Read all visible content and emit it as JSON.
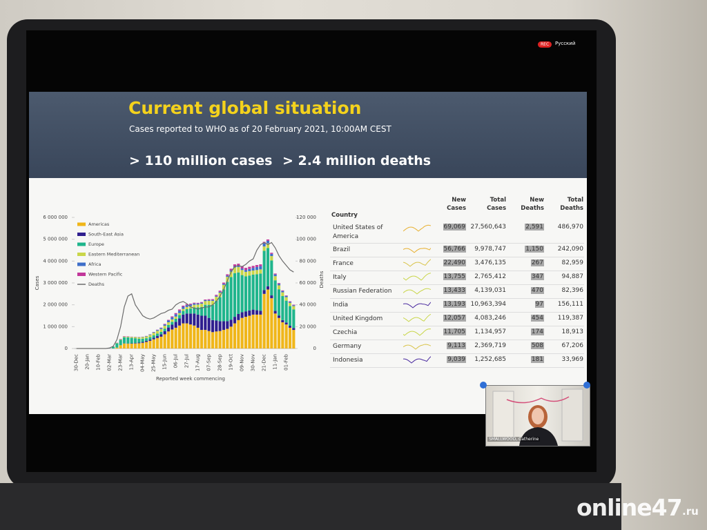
{
  "top_bar": {
    "rec": "REC",
    "language": "Русский"
  },
  "slide": {
    "title": "Current global situation",
    "subtitle": "Cases reported to WHO as of 20 February 2021, 10:00AM CEST",
    "stats": [
      "> 110 million cases",
      "> 2.4 million deaths"
    ]
  },
  "chart_data": {
    "type": "bar",
    "stacked": true,
    "x_label": "Reported week commencing",
    "y_label": "Cases",
    "y2_label": "Deaths",
    "legend": "top-left",
    "categories": [
      "30-Dec",
      null,
      null,
      "20-Jan",
      null,
      null,
      "10-Feb",
      null,
      null,
      "02-Mar",
      null,
      null,
      "23-Mar",
      null,
      null,
      "13-Apr",
      null,
      null,
      "04-May",
      null,
      null,
      "25-May",
      null,
      null,
      "15-Jun",
      null,
      null,
      "06-Jul",
      null,
      null,
      "27-Jul",
      null,
      null,
      "17-Aug",
      null,
      null,
      "07-Sep",
      null,
      null,
      "28-Sep",
      null,
      null,
      "19-Oct",
      null,
      null,
      "09-Nov",
      null,
      null,
      "30-Nov",
      null,
      null,
      "21-Dec",
      null,
      null,
      "11-Jan",
      null,
      null,
      "01-Feb",
      null,
      null
    ],
    "ylim": [
      0,
      6000000
    ],
    "yticks": [
      0,
      {
        "value": 1000000,
        "label": "1 000 000"
      },
      {
        "value": 2000000,
        "label": "2 000 000"
      },
      {
        "value": 3000000,
        "label": "3 000 000"
      },
      {
        "value": 4000000,
        "label": "4 000 000"
      },
      {
        "value": 5000000,
        "label": "5 000 000"
      },
      {
        "value": 6000000,
        "label": "6 000 000"
      }
    ],
    "y2lim": [
      0,
      120000
    ],
    "y2ticks": [
      0,
      {
        "value": 20000,
        "label": "20 000"
      },
      {
        "value": 40000,
        "label": "40 000"
      },
      {
        "value": 60000,
        "label": "60 000"
      },
      {
        "value": 80000,
        "label": "80 000"
      },
      {
        "value": 100000,
        "label": "100 000"
      },
      {
        "value": 120000,
        "label": "120 000"
      }
    ],
    "series": [
      {
        "name": "Americas",
        "color": "#f0b619",
        "values": [
          0,
          0,
          0,
          0,
          0,
          0,
          0,
          0,
          0,
          0,
          5000,
          40000,
          150000,
          230000,
          220000,
          220000,
          230000,
          240000,
          260000,
          300000,
          350000,
          420000,
          480000,
          540000,
          650000,
          780000,
          870000,
          950000,
          1050000,
          1150000,
          1150000,
          1100000,
          1050000,
          950000,
          850000,
          850000,
          800000,
          750000,
          780000,
          800000,
          850000,
          900000,
          1000000,
          1150000,
          1300000,
          1400000,
          1450000,
          1500000,
          1550000,
          1550000,
          1550000,
          2500000,
          2700000,
          2300000,
          1600000,
          1400000,
          1200000,
          1100000,
          950000,
          850000
        ]
      },
      {
        "name": "South-East Asia",
        "color": "#2f1f8f",
        "values": [
          0,
          0,
          0,
          0,
          0,
          0,
          0,
          0,
          0,
          0,
          0,
          0,
          0,
          5000,
          10000,
          15000,
          20000,
          30000,
          40000,
          50000,
          60000,
          70000,
          90000,
          110000,
          140000,
          180000,
          220000,
          270000,
          330000,
          400000,
          450000,
          500000,
          550000,
          600000,
          650000,
          650000,
          600000,
          550000,
          500000,
          450000,
          400000,
          350000,
          320000,
          300000,
          280000,
          260000,
          250000,
          240000,
          230000,
          200000,
          180000,
          170000,
          150000,
          130000,
          120000,
          110000,
          100000,
          90000,
          90000,
          90000
        ]
      },
      {
        "name": "Europe",
        "color": "#1fb58c",
        "values": [
          0,
          0,
          0,
          0,
          0,
          0,
          0,
          0,
          0,
          10000,
          80000,
          200000,
          250000,
          280000,
          280000,
          250000,
          220000,
          180000,
          150000,
          120000,
          110000,
          110000,
          110000,
          110000,
          120000,
          120000,
          130000,
          140000,
          150000,
          170000,
          200000,
          230000,
          280000,
          330000,
          400000,
          500000,
          600000,
          700000,
          900000,
          1100000,
          1450000,
          1800000,
          1950000,
          2000000,
          1900000,
          1700000,
          1600000,
          1600000,
          1600000,
          1650000,
          1700000,
          1800000,
          1750000,
          1600000,
          1400000,
          1200000,
          1100000,
          1000000,
          900000,
          850000
        ]
      },
      {
        "name": "Eastern Mediterranean",
        "color": "#c9d64a",
        "values": [
          0,
          0,
          0,
          0,
          0,
          0,
          0,
          0,
          0,
          0,
          10000,
          15000,
          20000,
          25000,
          30000,
          40000,
          50000,
          60000,
          70000,
          80000,
          100000,
          120000,
          130000,
          130000,
          130000,
          120000,
          110000,
          100000,
          90000,
          90000,
          100000,
          110000,
          120000,
          130000,
          150000,
          170000,
          180000,
          180000,
          190000,
          200000,
          210000,
          230000,
          250000,
          260000,
          250000,
          230000,
          210000,
          200000,
          190000,
          190000,
          190000,
          200000,
          210000,
          200000,
          190000,
          180000,
          170000,
          160000,
          150000,
          150000
        ]
      },
      {
        "name": "Africa",
        "color": "#3e6fc9",
        "values": [
          0,
          0,
          0,
          0,
          0,
          0,
          0,
          0,
          0,
          0,
          0,
          0,
          0,
          2000,
          4000,
          6000,
          8000,
          10000,
          14000,
          18000,
          24000,
          30000,
          40000,
          50000,
          60000,
          80000,
          100000,
          110000,
          110000,
          100000,
          80000,
          70000,
          60000,
          50000,
          45000,
          40000,
          40000,
          40000,
          40000,
          45000,
          50000,
          55000,
          60000,
          60000,
          60000,
          70000,
          80000,
          100000,
          120000,
          140000,
          150000,
          140000,
          120000,
          100000,
          80000,
          70000,
          60000,
          50000,
          45000,
          40000
        ]
      },
      {
        "name": "Western Pacific",
        "color": "#c2379a",
        "values": [
          0,
          0,
          0,
          0,
          2000,
          10000,
          15000,
          8000,
          5000,
          4000,
          5000,
          10000,
          15000,
          20000,
          15000,
          10000,
          8000,
          6000,
          6000,
          6000,
          6000,
          8000,
          10000,
          15000,
          25000,
          30000,
          40000,
          50000,
          55000,
          50000,
          45000,
          40000,
          35000,
          30000,
          30000,
          30000,
          35000,
          40000,
          45000,
          50000,
          55000,
          60000,
          70000,
          80000,
          90000,
          100000,
          100000,
          100000,
          90000,
          90000,
          80000,
          70000,
          60000,
          50000,
          40000,
          35000,
          30000,
          25000,
          25000,
          25000
        ]
      },
      {
        "name": "Deaths",
        "color": "#6b6b6b",
        "type": "line",
        "axis": "y2",
        "values": [
          0,
          0,
          0,
          0,
          0,
          0,
          0,
          0,
          0,
          500,
          2000,
          8000,
          20000,
          38000,
          48000,
          50000,
          40000,
          35000,
          30000,
          28000,
          27000,
          28000,
          30000,
          32000,
          33000,
          35000,
          36000,
          40000,
          42000,
          43000,
          41000,
          38000,
          37000,
          36000,
          37000,
          38000,
          38000,
          40000,
          43000,
          48000,
          54000,
          62000,
          70000,
          75000,
          76000,
          75000,
          77000,
          80000,
          82000,
          90000,
          95000,
          97000,
          95000,
          97000,
          92000,
          85000,
          80000,
          76000,
          72000,
          70000
        ]
      }
    ]
  },
  "table": {
    "header": [
      "Country",
      "New Cases",
      "Total Cases",
      "New Deaths",
      "Total Deaths"
    ],
    "rows": [
      [
        "United States of America",
        "69,069",
        "27,560,643",
        "2,591",
        "486,970"
      ],
      [
        "Brazil",
        "56,766",
        "9,978,747",
        "1,150",
        "242,090"
      ],
      [
        "France",
        "22,490",
        "3,476,135",
        "267",
        "82,959"
      ],
      [
        "Italy",
        "13,755",
        "2,765,412",
        "347",
        "94,887"
      ],
      [
        "Russian Federation",
        "13,433",
        "4,139,031",
        "470",
        "82,396"
      ],
      [
        "India",
        "13,193",
        "10,963,394",
        "97",
        "156,111"
      ],
      [
        "United Kingdom",
        "12,057",
        "4,083,246",
        "454",
        "119,387"
      ],
      [
        "Czechia",
        "11,705",
        "1,134,957",
        "174",
        "18,913"
      ],
      [
        "Germany",
        "9,113",
        "2,369,719",
        "508",
        "67,206"
      ],
      [
        "Indonesia",
        "9,039",
        "1,252,685",
        "181",
        "33,969"
      ]
    ]
  },
  "video": {
    "caption": "SMALLWOOD, Catherine"
  },
  "watermark": {
    "name": "online47",
    "domain": ".ru"
  }
}
